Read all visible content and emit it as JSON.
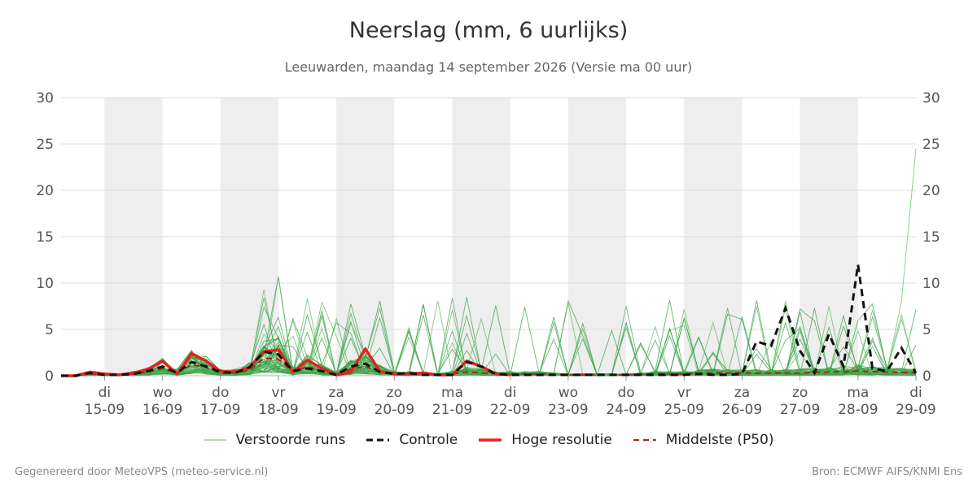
{
  "chart_data": {
    "type": "line",
    "title": "Neerslag (mm, 6 uurlijks)",
    "subtitle": "Leeuwarden, maandag 14 september 2026 (Versie ma 00 uur)",
    "ylim": [
      0,
      30
    ],
    "yticks": [
      0,
      5,
      10,
      15,
      20,
      25,
      30
    ],
    "xrange_days": [
      -0.75,
      14.0
    ],
    "x_ticks": [
      {
        "day": "di",
        "date": "15-09"
      },
      {
        "day": "wo",
        "date": "16-09"
      },
      {
        "day": "do",
        "date": "17-09"
      },
      {
        "day": "vr",
        "date": "18-09"
      },
      {
        "day": "za",
        "date": "19-09"
      },
      {
        "day": "zo",
        "date": "20-09"
      },
      {
        "day": "ma",
        "date": "21-09"
      },
      {
        "day": "di",
        "date": "22-09"
      },
      {
        "day": "wo",
        "date": "23-09"
      },
      {
        "day": "do",
        "date": "24-09"
      },
      {
        "day": "vr",
        "date": "25-09"
      },
      {
        "day": "za",
        "date": "26-09"
      },
      {
        "day": "zo",
        "date": "27-09"
      },
      {
        "day": "ma",
        "date": "28-09"
      },
      {
        "day": "di",
        "date": "29-09"
      }
    ],
    "weekend_bands": [
      [
        15,
        16
      ],
      [
        17,
        18
      ],
      [
        19,
        20
      ],
      [
        21,
        22
      ],
      [
        23,
        24
      ],
      [
        25,
        26
      ],
      [
        27,
        28
      ]
    ],
    "grid": true,
    "legend_position": "bottom",
    "legend": [
      {
        "label": "Verstoorde runs",
        "color": "#5cb85c",
        "style": "thin"
      },
      {
        "label": "Controle",
        "color": "#111111",
        "style": "dashed"
      },
      {
        "label": "Hoge resolutie",
        "color": "#e8201c",
        "style": "thick"
      },
      {
        "label": "Middelste (P50)",
        "color": "#b22222",
        "style": "dashed"
      }
    ],
    "colors": {
      "ensemble": "#2e9e3e",
      "control": "#111111",
      "high_res": "#e8201c",
      "median": "#b22222",
      "weekend_band": "#eeeeee",
      "grid": "#dddddd"
    },
    "series": [
      {
        "name": "Controle",
        "x": [
          -0.75,
          -0.5,
          -0.25,
          0,
          0.25,
          0.5,
          0.75,
          1,
          1.25,
          1.5,
          1.75,
          2,
          2.25,
          2.5,
          2.75,
          3,
          3.25,
          3.5,
          3.75,
          4,
          4.25,
          4.5,
          4.75,
          5,
          5.25,
          5.5,
          5.75,
          6,
          6.25,
          6.5,
          6.75,
          7,
          7.25,
          7.5,
          7.75,
          8,
          8.25,
          8.5,
          8.75,
          9,
          9.25,
          9.5,
          9.75,
          10,
          10.25,
          10.5,
          10.75,
          11,
          11.25,
          11.5,
          11.75,
          12,
          12.25,
          12.5,
          12.75,
          13,
          13.25,
          13.5,
          13.75,
          14
        ],
        "values": [
          0,
          0,
          0.3,
          0.1,
          0.1,
          0.2,
          0.5,
          1.0,
          0.3,
          1.5,
          1.0,
          0.4,
          0.3,
          0.9,
          2.6,
          2.3,
          0.5,
          0.8,
          0.5,
          0.1,
          1.0,
          1.3,
          0.4,
          0.2,
          0.3,
          0.1,
          0.1,
          0.1,
          1.5,
          1.0,
          0.2,
          0.1,
          0.1,
          0.1,
          0.1,
          0.1,
          0.1,
          0.1,
          0.1,
          0.1,
          0.1,
          0.1,
          0.1,
          0.1,
          0.2,
          0.1,
          0.1,
          0.2,
          3.7,
          3.2,
          7.3,
          2.7,
          0.3,
          4.5,
          1.0,
          12.0,
          0.8,
          0.5,
          3.0,
          0.3
        ]
      },
      {
        "name": "Hoge resolutie",
        "x": [
          -0.75,
          -0.5,
          -0.25,
          0,
          0.25,
          0.5,
          0.75,
          1,
          1.25,
          1.5,
          1.75,
          2,
          2.25,
          2.5,
          2.75,
          3,
          3.25,
          3.5,
          3.75,
          4,
          4.25,
          4.5,
          4.75,
          5,
          5.25,
          5.5,
          5.75,
          6,
          6.25,
          6.5,
          6.75,
          7
        ],
        "values": [
          0,
          0,
          0.4,
          0.2,
          0.1,
          0.3,
          0.7,
          1.6,
          0.2,
          2.4,
          1.6,
          0.5,
          0.4,
          0.9,
          2.6,
          2.8,
          0.4,
          1.7,
          0.8,
          0.1,
          0.4,
          2.9,
          0.5,
          0.2,
          0.2,
          0.3,
          0.1,
          0.1,
          1.6,
          1.0,
          0.2,
          0.1
        ]
      },
      {
        "name": "Middelste (P50)",
        "x": [
          -0.75,
          -0.5,
          -0.25,
          0,
          0.25,
          0.5,
          0.75,
          1,
          1.25,
          1.5,
          1.75,
          2,
          2.25,
          2.5,
          2.75,
          3,
          3.25,
          3.5,
          3.75,
          4,
          4.25,
          4.5,
          4.75,
          5,
          5.25,
          5.5,
          5.75,
          6,
          6.25,
          6.5,
          6.75,
          7,
          7.5,
          8,
          8.5,
          9,
          9.5,
          10,
          10.5,
          11,
          11.5,
          12,
          12.5,
          13,
          13.5,
          14
        ],
        "values": [
          0,
          0,
          0.2,
          0.1,
          0.1,
          0.2,
          0.4,
          0.8,
          0.3,
          1.2,
          0.9,
          0.3,
          0.3,
          0.6,
          1.9,
          1.8,
          0.4,
          1.0,
          0.5,
          0.2,
          0.7,
          1.0,
          0.5,
          0.2,
          0.2,
          0.2,
          0.1,
          0.2,
          0.4,
          0.3,
          0.2,
          0.2,
          0.2,
          0.1,
          0.1,
          0.1,
          0.2,
          0.2,
          0.3,
          0.3,
          0.3,
          0.3,
          0.4,
          0.5,
          0.4,
          0.3
        ]
      }
    ],
    "ensemble_note_max": 24.5
  },
  "footer": {
    "left": "Gegenereerd door MeteoVPS (meteo-service.nl)",
    "right": "Bron: ECMWF AIFS/KNMI Ens"
  }
}
